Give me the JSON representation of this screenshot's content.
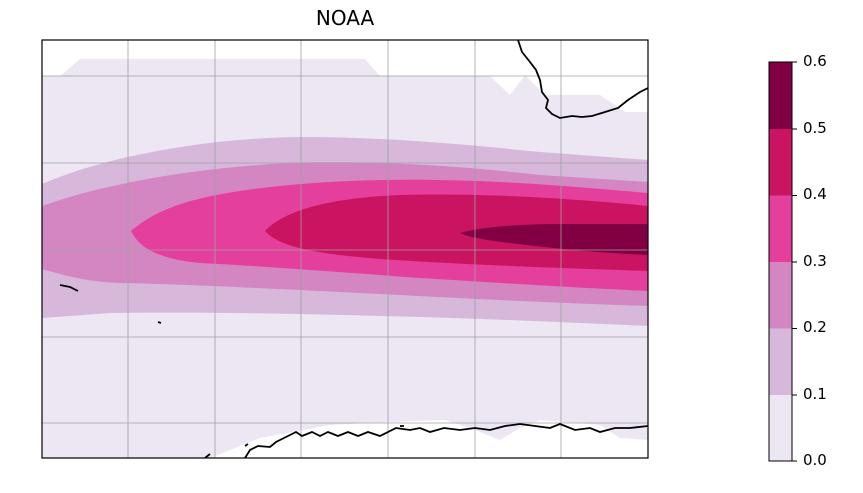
{
  "title": "NOAA",
  "colorbar": {
    "ticks": [
      "0.0",
      "0.1",
      "0.2",
      "0.3",
      "0.4",
      "0.5",
      "0.6"
    ],
    "levels": [
      0.0,
      0.1,
      0.2,
      0.3,
      0.4,
      0.5,
      0.6
    ],
    "colors": [
      "#ede6f3",
      "#d7b8db",
      "#d386c2",
      "#e43f9d",
      "#cb1461",
      "#810043"
    ]
  },
  "map": {
    "gridlines": true,
    "coastline_color": "#000000",
    "gridline_color": "#a0a0a0"
  }
}
